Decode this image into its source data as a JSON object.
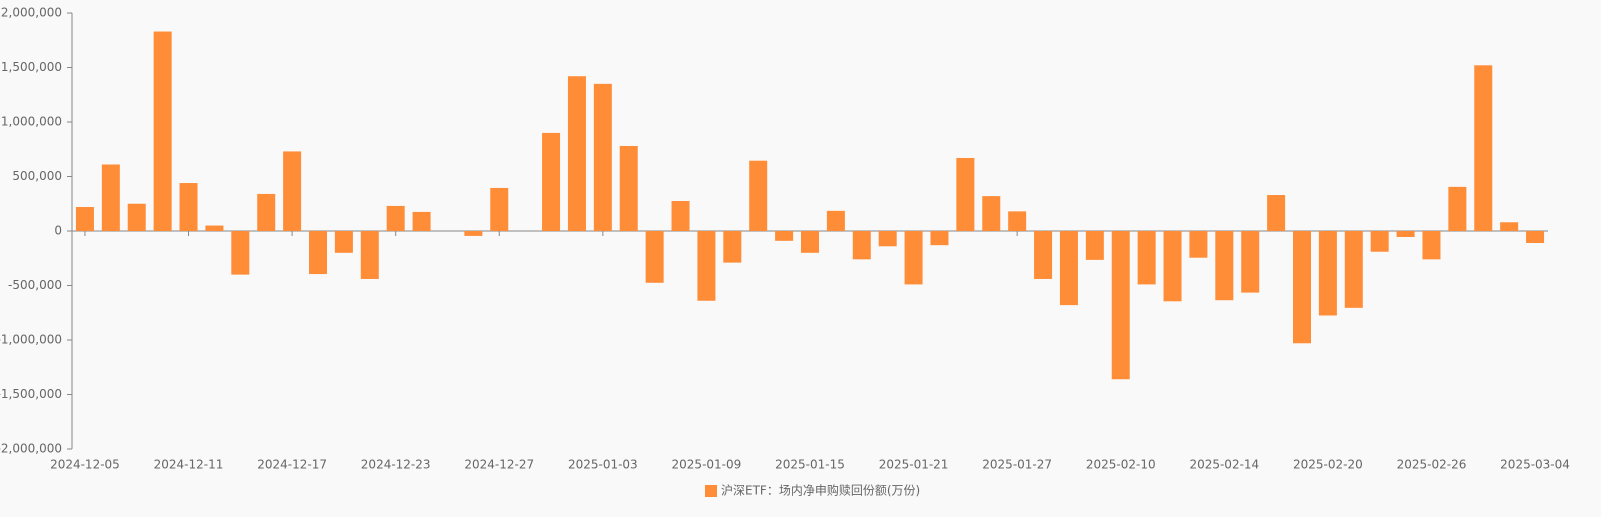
{
  "chart_data": {
    "type": "bar",
    "categories": [
      "2024-12-05",
      null,
      null,
      null,
      "2024-12-11",
      null,
      null,
      null,
      "2024-12-17",
      null,
      null,
      null,
      "2024-12-23",
      null,
      null,
      null,
      "2024-12-27",
      null,
      null,
      null,
      "2025-01-03",
      null,
      null,
      null,
      "2025-01-09",
      null,
      null,
      null,
      "2025-01-15",
      null,
      null,
      null,
      "2025-01-21",
      null,
      null,
      null,
      "2025-01-27",
      null,
      null,
      null,
      "2025-02-10",
      null,
      null,
      null,
      "2025-02-14",
      null,
      null,
      null,
      "2025-02-20",
      null,
      null,
      null,
      "2025-02-26",
      null,
      null,
      null,
      "2025-03-04"
    ],
    "series": [
      {
        "name": "沪深ETF：场内净申购赎回份额(万份)",
        "color": "#ff8c37",
        "values": [
          220000,
          610000,
          250000,
          1830000,
          440000,
          50000,
          -400000,
          340000,
          730000,
          -395000,
          -200000,
          -440000,
          230000,
          175000,
          0,
          -45000,
          395000,
          0,
          900000,
          1420000,
          1350000,
          780000,
          -475000,
          275000,
          -640000,
          -290000,
          645000,
          -90000,
          -200000,
          185000,
          -260000,
          -140000,
          -490000,
          -130000,
          670000,
          320000,
          180000,
          -440000,
          -680000,
          -265000,
          -1360000,
          -490000,
          -645000,
          -245000,
          -635000,
          -565000,
          330000,
          -1030000,
          -775000,
          -705000,
          -190000,
          -55000,
          -260000,
          405000,
          1520000,
          80000,
          -110000
        ]
      }
    ],
    "ylim": [
      -2000000,
      2000000
    ],
    "yticks": [
      {
        "value": -2000000,
        "label": "-2,000,000"
      },
      {
        "value": -1500000,
        "label": "-1,500,000"
      },
      {
        "value": -1000000,
        "label": "-1,000,000"
      },
      {
        "value": -500000,
        "label": "-500,000"
      },
      0,
      {
        "value": 500000,
        "label": "500,000"
      },
      {
        "value": 1000000,
        "label": "1,000,000"
      },
      {
        "value": 1500000,
        "label": "1,500,000"
      },
      {
        "value": 2000000,
        "label": "2,000,000"
      }
    ],
    "grid": false,
    "legend": "bottom"
  }
}
